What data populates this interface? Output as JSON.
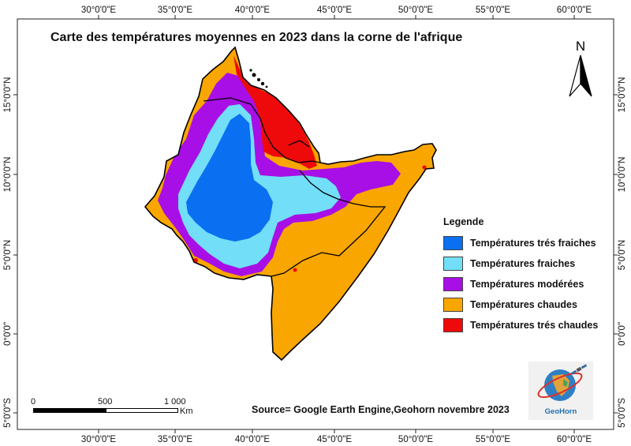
{
  "map": {
    "title": "Carte des températures moyennes en 2023 dans la corne de l'afrique",
    "lon_labels": [
      "30°0'0\"E",
      "35°0'0\"E",
      "40°0'0\"E",
      "45°0'0\"E",
      "50°0'0\"E",
      "55°0'0\"E",
      "60°0'0\"E"
    ],
    "lat_labels": [
      "15°0'0\"N",
      "10°0'0\"N",
      "5°0'0\"N",
      "0°0'0\"",
      "5°0'0\"S"
    ],
    "north_arrow": {
      "letter": "N",
      "icon": "north-arrow-icon"
    },
    "legend": {
      "title": "Legende",
      "items": [
        {
          "label": "Températures trés fraiches",
          "color": "#0a6ff0"
        },
        {
          "label": "Températures  fraiches",
          "color": "#72def8"
        },
        {
          "label": "Températures modérées",
          "color": "#a80fe6"
        },
        {
          "label": "Températures chaudes",
          "color": "#f9a600"
        },
        {
          "label": "Températures trés chaudes",
          "color": "#ee0a0a"
        }
      ]
    },
    "source": "Source= Google Earth Engine,Geohorn novembre 2023",
    "scale_bar": {
      "labels": [
        "0",
        "500",
        "1 000"
      ],
      "unit": "Km"
    },
    "logo": {
      "text": "GeoHorn",
      "icon": "geohorn-globe-icon"
    }
  }
}
